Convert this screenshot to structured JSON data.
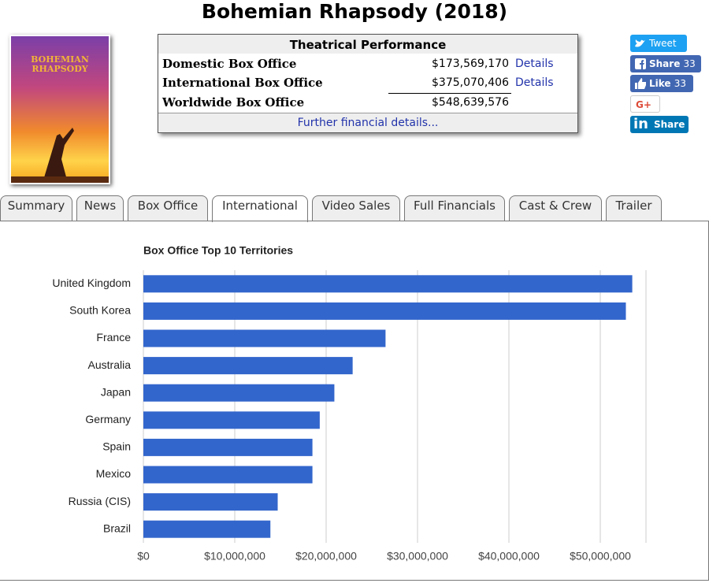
{
  "header": {
    "title": "Bohemian Rhapsody (2018)"
  },
  "poster": {
    "lines": [
      "BOHEMIAN",
      "RHAPSODY"
    ]
  },
  "performance": {
    "heading": "Theatrical Performance",
    "rows": [
      {
        "label": "Domestic Box Office",
        "amount": "$173,569,170",
        "link": "Details"
      },
      {
        "label": "International Box Office",
        "amount": "$375,070,406",
        "link": "Details"
      },
      {
        "label": "Worldwide Box Office",
        "amount": "$548,639,576"
      }
    ],
    "footer": "Further financial details..."
  },
  "social": {
    "tweet": "Tweet",
    "fb": "Share",
    "fb_count": "33",
    "like": "Like",
    "like_count": "33",
    "gplus": "G+",
    "linkedin_icon": "in",
    "linkedin": "Share"
  },
  "tabs": {
    "items": [
      "Summary",
      "News",
      "Box Office",
      "International",
      "Video Sales",
      "Full Financials",
      "Cast & Crew",
      "Trailer"
    ],
    "active": 3
  },
  "chart_data": {
    "type": "bar",
    "orientation": "horizontal",
    "title": "Box Office Top 10 Territories",
    "categories": [
      "United Kingdom",
      "South Korea",
      "France",
      "Australia",
      "Japan",
      "Germany",
      "Spain",
      "Mexico",
      "Russia (CIS)",
      "Brazil"
    ],
    "values": [
      53500000,
      52800000,
      26500000,
      22900000,
      20900000,
      19300000,
      18500000,
      18500000,
      14700000,
      13900000
    ],
    "color": "#3366cc",
    "xlim": [
      0,
      55000000
    ],
    "xticks": [
      {
        "value": 0,
        "label": "$0"
      },
      {
        "value": 10000000,
        "label": "$10,000,000"
      },
      {
        "value": 20000000,
        "label": "$20,000,000"
      },
      {
        "value": 30000000,
        "label": "$30,000,000"
      },
      {
        "value": 40000000,
        "label": "$40,000,000"
      },
      {
        "value": 50000000,
        "label": "$50,000,000"
      }
    ],
    "grid": true
  }
}
